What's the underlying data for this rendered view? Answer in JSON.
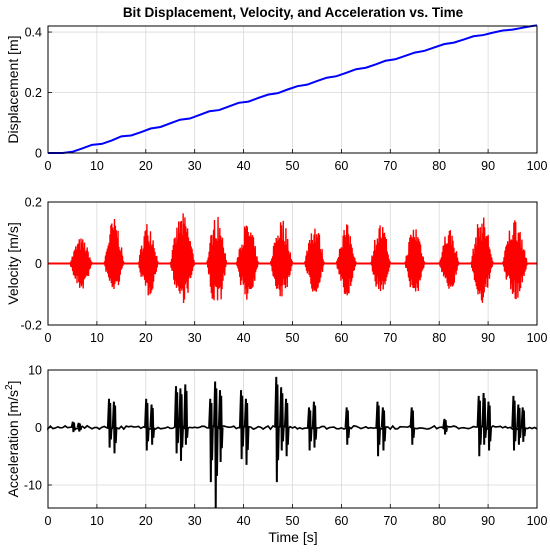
{
  "figure": {
    "title": "Bit Displacement, Velocity, and Acceleration vs. Time",
    "xlabel": "Time [s]"
  },
  "colors": {
    "displacement": "#0000ff",
    "velocity": "#ff0000",
    "acceleration": "#000000",
    "grid": "#d9d9d9",
    "axis": "#000000"
  },
  "chart_data": [
    {
      "type": "line",
      "title": "Bit Displacement, Velocity, and Acceleration vs. Time",
      "xlabel": "",
      "ylabel": "Displacement [m]",
      "xlim": [
        0,
        100
      ],
      "ylim": [
        0,
        0.42
      ],
      "xticks": [
        0,
        10,
        20,
        30,
        40,
        50,
        60,
        70,
        80,
        90,
        100
      ],
      "yticks": [
        0,
        0.2,
        0.4
      ],
      "ytick_labels": [
        "0",
        "0.2",
        "0.4"
      ],
      "grid": true,
      "series": [
        {
          "color": "#0000ff",
          "x": [
            0,
            3,
            5,
            7,
            9,
            11,
            13,
            15,
            17,
            19,
            21,
            23,
            25,
            27,
            29,
            31,
            33,
            35,
            37,
            39,
            41,
            43,
            45,
            47,
            49,
            51,
            53,
            55,
            57,
            59,
            61,
            63,
            65,
            67,
            69,
            71,
            73,
            75,
            77,
            79,
            81,
            83,
            85,
            87,
            89,
            91,
            93,
            95,
            97,
            99,
            100
          ],
          "y": [
            0.0,
            0.0,
            0.004,
            0.015,
            0.027,
            0.03,
            0.041,
            0.055,
            0.058,
            0.069,
            0.081,
            0.086,
            0.098,
            0.11,
            0.114,
            0.126,
            0.138,
            0.142,
            0.154,
            0.166,
            0.17,
            0.182,
            0.193,
            0.198,
            0.21,
            0.221,
            0.226,
            0.238,
            0.249,
            0.254,
            0.265,
            0.277,
            0.282,
            0.293,
            0.305,
            0.31,
            0.321,
            0.332,
            0.338,
            0.349,
            0.36,
            0.365,
            0.375,
            0.386,
            0.39,
            0.398,
            0.405,
            0.408,
            0.414,
            0.42,
            0.422
          ]
        }
      ]
    },
    {
      "type": "line",
      "xlabel": "",
      "ylabel": "Velocity [m/s]",
      "xlim": [
        0,
        100
      ],
      "ylim": [
        -0.2,
        0.2
      ],
      "xticks": [
        0,
        10,
        20,
        30,
        40,
        50,
        60,
        70,
        80,
        90,
        100
      ],
      "yticks": [
        -0.2,
        0,
        0.2
      ],
      "ytick_labels": [
        "-0.2",
        "0",
        "0.2"
      ],
      "grid": true,
      "signal": {
        "baseline": 0,
        "bursts": [
          {
            "start": 4.5,
            "end": 9,
            "peak_pos": 0.085,
            "peak_neg": -0.09
          },
          {
            "start": 11.5,
            "end": 15.5,
            "peak_pos": 0.15,
            "peak_neg": -0.1
          },
          {
            "start": 18.5,
            "end": 22.5,
            "peak_pos": 0.14,
            "peak_neg": -0.11
          },
          {
            "start": 25,
            "end": 30,
            "peak_pos": 0.165,
            "peak_neg": -0.13
          },
          {
            "start": 32.5,
            "end": 36.5,
            "peak_pos": 0.16,
            "peak_neg": -0.155
          },
          {
            "start": 38.5,
            "end": 43,
            "peak_pos": 0.135,
            "peak_neg": -0.12
          },
          {
            "start": 45.5,
            "end": 50,
            "peak_pos": 0.15,
            "peak_neg": -0.115
          },
          {
            "start": 52.5,
            "end": 56.5,
            "peak_pos": 0.14,
            "peak_neg": -0.1
          },
          {
            "start": 59,
            "end": 63,
            "peak_pos": 0.13,
            "peak_neg": -0.12
          },
          {
            "start": 66,
            "end": 70,
            "peak_pos": 0.135,
            "peak_neg": -0.1
          },
          {
            "start": 73,
            "end": 77,
            "peak_pos": 0.13,
            "peak_neg": -0.11
          },
          {
            "start": 80,
            "end": 84,
            "peak_pos": 0.12,
            "peak_neg": -0.095
          },
          {
            "start": 86.5,
            "end": 91,
            "peak_pos": 0.16,
            "peak_neg": -0.13
          },
          {
            "start": 93,
            "end": 98,
            "peak_pos": 0.155,
            "peak_neg": -0.12
          }
        ]
      }
    },
    {
      "type": "line",
      "xlabel": "Time [s]",
      "ylabel": "Acceleration [m/s²]",
      "ylabel_parts": {
        "main": "Acceleration [m/s",
        "sup": "2",
        "end": "]"
      },
      "xlim": [
        0,
        100
      ],
      "ylim": [
        -14,
        10
      ],
      "xticks": [
        0,
        10,
        20,
        30,
        40,
        50,
        60,
        70,
        80,
        90,
        100
      ],
      "yticks": [
        -10,
        0,
        10
      ],
      "ytick_labels": [
        "-10",
        "0",
        "10"
      ],
      "grid": true,
      "signal": {
        "baseline": 0,
        "spikes": [
          {
            "t": 5.2,
            "pos": 1.0,
            "neg": -0.8
          },
          {
            "t": 6.4,
            "pos": 0.8,
            "neg": -0.7
          },
          {
            "t": 12.6,
            "pos": 5.0,
            "neg": -3.5
          },
          {
            "t": 13.6,
            "pos": 4.5,
            "neg": -4.5
          },
          {
            "t": 20.2,
            "pos": 5.0,
            "neg": -4.0
          },
          {
            "t": 21.3,
            "pos": 4.0,
            "neg": -3.0
          },
          {
            "t": 26.3,
            "pos": 7.2,
            "neg": -4.5
          },
          {
            "t": 27.2,
            "pos": 6.8,
            "neg": -5.8
          },
          {
            "t": 28.2,
            "pos": 7.5,
            "neg": -3.0
          },
          {
            "t": 33.3,
            "pos": 5.0,
            "neg": -9.5
          },
          {
            "t": 34.3,
            "pos": 8.0,
            "neg": -14.0
          },
          {
            "t": 35.3,
            "pos": 6.5,
            "neg": -6.0
          },
          {
            "t": 39.6,
            "pos": 6.5,
            "neg": -5.5
          },
          {
            "t": 40.6,
            "pos": 5.0,
            "neg": -6.5
          },
          {
            "t": 46.8,
            "pos": 8.8,
            "neg": -9.5
          },
          {
            "t": 47.8,
            "pos": 7.0,
            "neg": -4.0
          },
          {
            "t": 48.8,
            "pos": 5.0,
            "neg": -5.0
          },
          {
            "t": 53.5,
            "pos": 3.5,
            "neg": -4.0
          },
          {
            "t": 54.5,
            "pos": 4.5,
            "neg": -3.5
          },
          {
            "t": 61.2,
            "pos": 3.5,
            "neg": -3.0
          },
          {
            "t": 67.5,
            "pos": 4.5,
            "neg": -5.0
          },
          {
            "t": 68.6,
            "pos": 3.5,
            "neg": -4.0
          },
          {
            "t": 74.5,
            "pos": 3.5,
            "neg": -3.0
          },
          {
            "t": 81.2,
            "pos": 1.5,
            "neg": -1.2
          },
          {
            "t": 88.2,
            "pos": 5.5,
            "neg": -5.0
          },
          {
            "t": 89.2,
            "pos": 6.0,
            "neg": -3.0
          },
          {
            "t": 90.2,
            "pos": 4.5,
            "neg": -4.0
          },
          {
            "t": 95.3,
            "pos": 5.5,
            "neg": -4.0
          },
          {
            "t": 96.3,
            "pos": 4.0,
            "neg": -3.0
          },
          {
            "t": 97.2,
            "pos": 3.5,
            "neg": -2.5
          }
        ]
      }
    }
  ]
}
